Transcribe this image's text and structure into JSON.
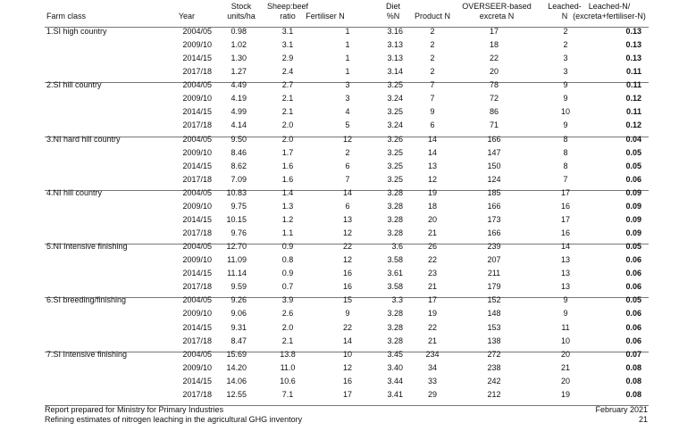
{
  "table": {
    "headers": [
      [
        "Farm class"
      ],
      [
        "Year"
      ],
      [
        "Stock",
        "units/ha"
      ],
      [
        "Sheep:beef",
        "ratio"
      ],
      [
        "Fertiliser N"
      ],
      [
        "Diet",
        "%N"
      ],
      [
        "Product N"
      ],
      [
        "OVERSEER-based",
        "excreta N"
      ],
      [
        "Leached-",
        "N"
      ],
      [
        "Leached-N/",
        "(excreta+fertiliser-N)"
      ]
    ],
    "groups": [
      {
        "farm_class": "1.SI high country",
        "rows": [
          [
            "2004/05",
            "0.98",
            "3.1",
            "1",
            "3.16",
            "2",
            "17",
            "2",
            "0.13"
          ],
          [
            "2009/10",
            "1.02",
            "3.1",
            "1",
            "3.13",
            "2",
            "18",
            "2",
            "0.13"
          ],
          [
            "2014/15",
            "1.30",
            "2.9",
            "1",
            "3.13",
            "2",
            "22",
            "3",
            "0.13"
          ],
          [
            "2017/18",
            "1.27",
            "2.4",
            "1",
            "3.14",
            "2",
            "20",
            "3",
            "0.11"
          ]
        ]
      },
      {
        "farm_class": "2.SI hill country",
        "rows": [
          [
            "2004/05",
            "4.49",
            "2.7",
            "3",
            "3.25",
            "7",
            "78",
            "9",
            "0.11"
          ],
          [
            "2009/10",
            "4.19",
            "2.1",
            "3",
            "3.24",
            "7",
            "72",
            "9",
            "0.12"
          ],
          [
            "2014/15",
            "4.99",
            "2.1",
            "4",
            "3.25",
            "9",
            "86",
            "10",
            "0.11"
          ],
          [
            "2017/18",
            "4.14",
            "2.0",
            "5",
            "3.24",
            "6",
            "71",
            "9",
            "0.12"
          ]
        ]
      },
      {
        "farm_class": "3.NI hard hill country",
        "rows": [
          [
            "2004/05",
            "9.50",
            "2.0",
            "12",
            "3.26",
            "14",
            "166",
            "8",
            "0.04"
          ],
          [
            "2009/10",
            "8.46",
            "1.7",
            "2",
            "3.25",
            "14",
            "147",
            "8",
            "0.05"
          ],
          [
            "2014/15",
            "8.62",
            "1.6",
            "6",
            "3.25",
            "13",
            "150",
            "8",
            "0.05"
          ],
          [
            "2017/18",
            "7.09",
            "1.6",
            "7",
            "3.25",
            "12",
            "124",
            "7",
            "0.06"
          ]
        ]
      },
      {
        "farm_class": "4.NI hill country",
        "rows": [
          [
            "2004/05",
            "10.83",
            "1.4",
            "14",
            "3.28",
            "19",
            "185",
            "17",
            "0.09"
          ],
          [
            "2009/10",
            "9.75",
            "1.3",
            "6",
            "3.28",
            "18",
            "166",
            "16",
            "0.09"
          ],
          [
            "2014/15",
            "10.15",
            "1.2",
            "13",
            "3.28",
            "20",
            "173",
            "17",
            "0.09"
          ],
          [
            "2017/18",
            "9.76",
            "1.1",
            "12",
            "3.28",
            "21",
            "166",
            "16",
            "0.09"
          ]
        ]
      },
      {
        "farm_class": "5.NI Intensive finishing",
        "rows": [
          [
            "2004/05",
            "12.70",
            "0.9",
            "22",
            "3.6",
            "26",
            "239",
            "14",
            "0.05"
          ],
          [
            "2009/10",
            "11.09",
            "0.8",
            "12",
            "3.58",
            "22",
            "207",
            "13",
            "0.06"
          ],
          [
            "2014/15",
            "11.14",
            "0.9",
            "16",
            "3.61",
            "23",
            "211",
            "13",
            "0.06"
          ],
          [
            "2017/18",
            "9.59",
            "0.7",
            "16",
            "3.58",
            "21",
            "179",
            "13",
            "0.06"
          ]
        ]
      },
      {
        "farm_class": "6.SI breeding/finishing",
        "rows": [
          [
            "2004/05",
            "9.26",
            "3.9",
            "15",
            "3.3",
            "17",
            "152",
            "9",
            "0.05"
          ],
          [
            "2009/10",
            "9.06",
            "2.6",
            "9",
            "3.28",
            "19",
            "148",
            "9",
            "0.06"
          ],
          [
            "2014/15",
            "9.31",
            "2.0",
            "22",
            "3.28",
            "22",
            "153",
            "11",
            "0.06"
          ],
          [
            "2017/18",
            "8.47",
            "2.1",
            "14",
            "3.28",
            "21",
            "138",
            "10",
            "0.06"
          ]
        ]
      },
      {
        "farm_class": "7.SI Intensive finishing",
        "rows": [
          [
            "2004/05",
            "15.69",
            "13.8",
            "10",
            "3.45",
            "234",
            "272",
            "20",
            "0.07"
          ],
          [
            "2009/10",
            "14.20",
            "11.0",
            "12",
            "3.40",
            "34",
            "238",
            "21",
            "0.08"
          ],
          [
            "2014/15",
            "14.06",
            "10.6",
            "16",
            "3.44",
            "33",
            "242",
            "20",
            "0.08"
          ],
          [
            "2017/18",
            "12.55",
            "7.1",
            "17",
            "3.41",
            "29",
            "212",
            "19",
            "0.08"
          ]
        ]
      }
    ]
  },
  "footer": {
    "left": [
      "Report prepared for Ministry for Primary Industries",
      "Refining estimates of nitrogen leaching in the agricultural GHG inventory"
    ],
    "date": "February 2021",
    "page": "21"
  }
}
